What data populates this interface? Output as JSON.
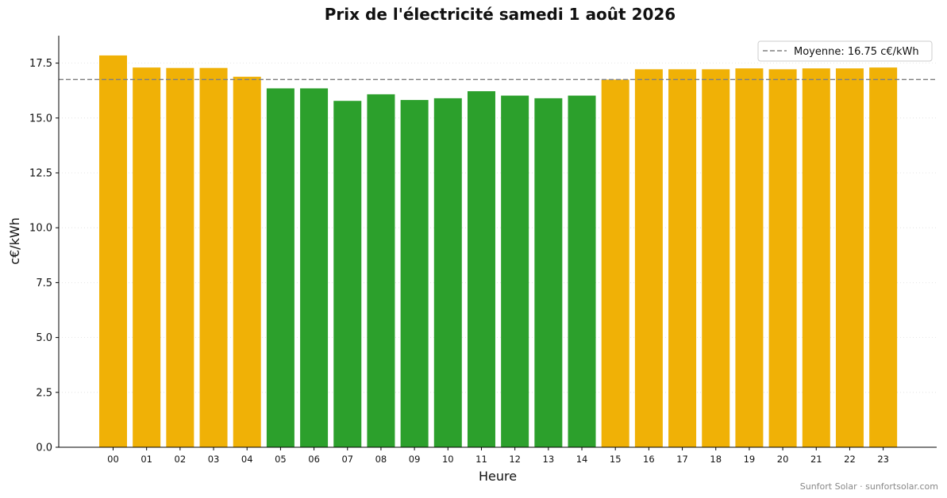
{
  "chart_data": {
    "type": "bar",
    "title": "Prix de l'électricité samedi 1 août 2026",
    "xlabel": "Heure",
    "ylabel": "c€/kWh",
    "ylim": [
      0,
      18.75
    ],
    "yticks": [
      "0.0",
      "2.5",
      "5.0",
      "7.5",
      "10.0",
      "12.5",
      "15.0",
      "17.5"
    ],
    "categories": [
      "00",
      "01",
      "02",
      "03",
      "04",
      "05",
      "06",
      "07",
      "08",
      "09",
      "10",
      "11",
      "12",
      "13",
      "14",
      "15",
      "16",
      "17",
      "18",
      "19",
      "20",
      "21",
      "22",
      "23"
    ],
    "values": [
      17.85,
      17.3,
      17.28,
      17.28,
      16.88,
      16.35,
      16.35,
      15.78,
      16.08,
      15.82,
      15.9,
      16.22,
      16.02,
      15.9,
      16.02,
      16.75,
      17.22,
      17.22,
      17.22,
      17.26,
      17.22,
      17.26,
      17.26,
      17.3
    ],
    "bar_levels": [
      "high",
      "high",
      "high",
      "high",
      "high",
      "low",
      "low",
      "low",
      "low",
      "low",
      "low",
      "low",
      "low",
      "low",
      "low",
      "high",
      "high",
      "high",
      "high",
      "high",
      "high",
      "high",
      "high",
      "high"
    ],
    "colors": {
      "high": "#f0b106",
      "low": "#2ca02c",
      "mean_line": "#808080",
      "grid": "#dddddd"
    },
    "mean": {
      "value": 16.75,
      "label": "Moyenne: 16.75 c€/kWh"
    },
    "legend_position": "top-right",
    "grid": "horizontal dotted",
    "footer": "Sunfort Solar · sunfortsolar.com"
  }
}
